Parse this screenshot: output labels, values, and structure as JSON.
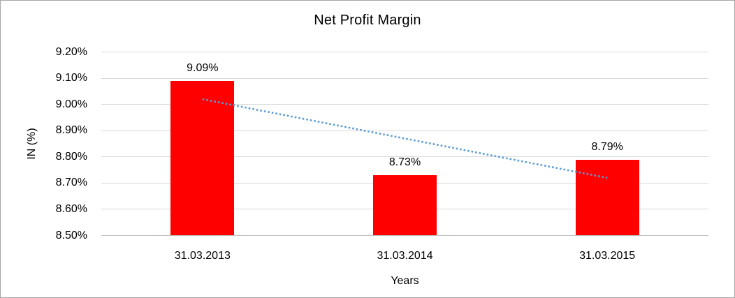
{
  "chart_data": {
    "type": "bar",
    "title": "Net Profit Margin",
    "xlabel": "Years",
    "ylabel": "IN (%)",
    "categories": [
      "31.03.2013",
      "31.03.2014",
      "31.03.2015"
    ],
    "values": [
      9.09,
      8.73,
      8.79
    ],
    "data_labels": [
      "9.09%",
      "8.73%",
      "8.79%"
    ],
    "ylim": [
      8.5,
      9.2
    ],
    "ytick_step": 0.1,
    "ytick_labels": [
      "9.20%",
      "9.10%",
      "9.00%",
      "8.90%",
      "8.80%",
      "8.70%",
      "8.60%",
      "8.50%"
    ],
    "grid": "horizontal",
    "legend_position": "none",
    "bar_color": "#ff0000",
    "gridline_color": "#d9d9d9",
    "axis_line_color": "#bfbfbf",
    "text_color": "#000000",
    "background_color": "#ffffff",
    "canvas_border_color": "#a6a6a6",
    "trendline": {
      "type": "linear",
      "style": "dotted",
      "color": "#5b9bd5",
      "start_value": 9.02,
      "end_value": 8.72
    }
  }
}
